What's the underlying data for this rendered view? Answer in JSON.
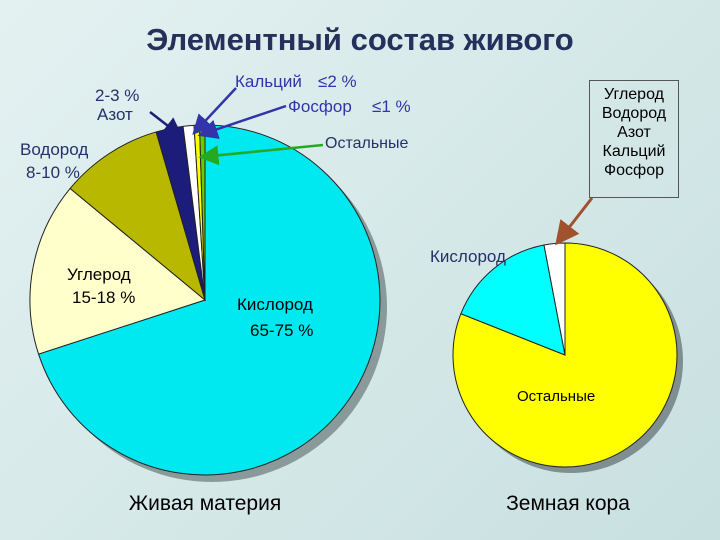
{
  "title": "Элементный состав живого",
  "chart_data": [
    {
      "type": "pie",
      "title": "Живая материя",
      "categories": [
        "Кислород",
        "Углерод",
        "Водород",
        "Азот",
        "Кальций",
        "Фосфор",
        "Остальные"
      ],
      "values": [
        70,
        16,
        9.5,
        2.5,
        1,
        0.5,
        0.5
      ],
      "range_labels": [
        "65-75 %",
        "15-18 %",
        "8-10 %",
        "2-3 %",
        "≤2 %",
        "≤1 %",
        null
      ],
      "colors": [
        "#00e8f0",
        "#ffffcc",
        "#b8b800",
        "#1c1c7a",
        "#ffffff",
        "#ffff00",
        "#66cc00"
      ]
    },
    {
      "type": "pie",
      "title": "Земная кора",
      "categories": [
        "Остальные",
        "Кислород",
        "Углерод Водород Азот Кальций Фосфор"
      ],
      "values": [
        81,
        16,
        3
      ],
      "colors": [
        "#ffff00",
        "#00ffff",
        "#ffffff"
      ]
    }
  ]
}
